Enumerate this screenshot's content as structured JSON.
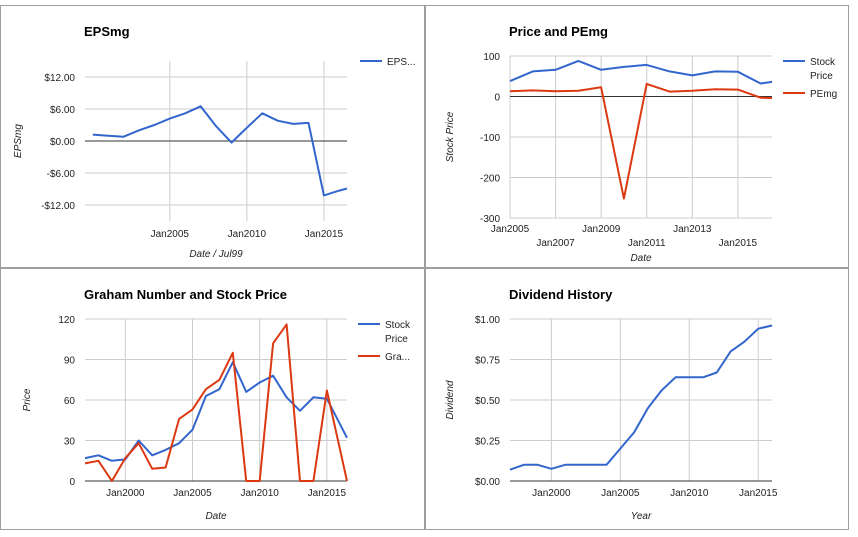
{
  "colors": {
    "blue": "#3366cc",
    "red": "#dc3912",
    "grid": "#cccccc"
  },
  "chart_data": [
    {
      "type": "line",
      "title": "EPSmg",
      "xlabel": "Date / Jul99",
      "ylabel": "EPSmg",
      "ylim": [
        -15,
        15
      ],
      "xlim": [
        "1999-07-01",
        "2016-07-01"
      ],
      "y_ticks": [
        {
          "label": "$12.00",
          "value": 12
        },
        {
          "label": "$6.00",
          "value": 6
        },
        {
          "label": "$0.00",
          "value": 0
        },
        {
          "label": "-$6.00",
          "value": -6
        },
        {
          "label": "-$12.00",
          "value": -12
        }
      ],
      "x_ticks": [
        {
          "label": "Jan2005",
          "value": "2005-01-01"
        },
        {
          "label": "Jan2010",
          "value": "2010-01-01"
        },
        {
          "label": "Jan2015",
          "value": "2015-01-01"
        }
      ],
      "legend_position": "right",
      "series": [
        {
          "name": "EPS...",
          "color": "#3366cc",
          "x": [
            "2000-01-01",
            "2001-01-01",
            "2002-01-01",
            "2003-01-01",
            "2004-01-01",
            "2005-01-01",
            "2006-01-01",
            "2007-01-01",
            "2008-01-01",
            "2009-01-01",
            "2010-01-01",
            "2011-01-01",
            "2012-01-01",
            "2013-01-01",
            "2014-01-01",
            "2015-01-01",
            "2016-01-01",
            "2016-07-01"
          ],
          "y": [
            1.2,
            1.0,
            0.8,
            2.0,
            3.0,
            4.2,
            5.2,
            6.5,
            2.8,
            -0.3,
            2.5,
            5.2,
            3.8,
            3.2,
            3.4,
            -10.2,
            -9.3,
            -8.9
          ]
        }
      ]
    },
    {
      "type": "line",
      "title": "Price and PEmg",
      "xlabel": "Date",
      "ylabel": "Stock Price",
      "ylim": [
        -300,
        100
      ],
      "xlim": [
        "2005-01-01",
        "2016-07-01"
      ],
      "y_ticks": [
        {
          "label": "100",
          "value": 100
        },
        {
          "label": "0",
          "value": 0
        },
        {
          "label": "-100",
          "value": -100
        },
        {
          "label": "-200",
          "value": -200
        },
        {
          "label": "-300",
          "value": -300
        }
      ],
      "x_ticks_top": [
        {
          "label": "Jan2005",
          "value": "2005-01-01"
        },
        {
          "label": "Jan2009",
          "value": "2009-01-01"
        },
        {
          "label": "Jan2013",
          "value": "2013-01-01"
        }
      ],
      "x_ticks_bottom": [
        {
          "label": "Jan2007",
          "value": "2007-01-01"
        },
        {
          "label": "Jan2011",
          "value": "2011-01-01"
        },
        {
          "label": "Jan2015",
          "value": "2015-01-01"
        }
      ],
      "legend_position": "right",
      "series": [
        {
          "name": "Stock Price",
          "color": "#3366cc",
          "x": [
            "2005-01-01",
            "2006-01-01",
            "2007-01-01",
            "2008-01-01",
            "2009-01-01",
            "2010-01-01",
            "2011-01-01",
            "2012-01-01",
            "2013-01-01",
            "2014-01-01",
            "2015-01-01",
            "2016-01-01",
            "2016-07-01"
          ],
          "y": [
            38,
            62,
            66,
            88,
            66,
            73,
            78,
            62,
            52,
            62,
            61,
            32,
            36
          ]
        },
        {
          "name": "PEmg",
          "color": "#dc3912",
          "x": [
            "2005-01-01",
            "2006-01-01",
            "2007-01-01",
            "2008-01-01",
            "2009-01-01",
            "2010-01-01",
            "2011-01-01",
            "2012-01-01",
            "2013-01-01",
            "2014-01-01",
            "2015-01-01",
            "2016-01-01",
            "2016-07-01"
          ],
          "y": [
            13,
            15,
            13,
            14,
            23,
            -252,
            31,
            12,
            14,
            18,
            17,
            -3,
            -4
          ]
        }
      ]
    },
    {
      "type": "line",
      "title": "Graham Number and Stock Price",
      "xlabel": "Date",
      "ylabel": "Price",
      "ylim": [
        0,
        120
      ],
      "xlim": [
        "1997-01-01",
        "2016-07-01"
      ],
      "y_ticks": [
        {
          "label": "120",
          "value": 120
        },
        {
          "label": "90",
          "value": 90
        },
        {
          "label": "60",
          "value": 60
        },
        {
          "label": "30",
          "value": 30
        },
        {
          "label": "0",
          "value": 0
        }
      ],
      "x_ticks": [
        {
          "label": "Jan2000",
          "value": "2000-01-01"
        },
        {
          "label": "Jan2005",
          "value": "2005-01-01"
        },
        {
          "label": "Jan2010",
          "value": "2010-01-01"
        },
        {
          "label": "Jan2015",
          "value": "2015-01-01"
        }
      ],
      "legend_position": "right",
      "series": [
        {
          "name": "Stock Price",
          "color": "#3366cc",
          "x": [
            "1997-01-01",
            "1998-01-01",
            "1999-01-01",
            "2000-01-01",
            "2001-01-01",
            "2002-01-01",
            "2003-01-01",
            "2004-01-01",
            "2005-01-01",
            "2006-01-01",
            "2007-01-01",
            "2008-01-01",
            "2009-01-01",
            "2010-01-01",
            "2011-01-01",
            "2012-01-01",
            "2013-01-01",
            "2014-01-01",
            "2015-01-01",
            "2016-07-01"
          ],
          "y": [
            17,
            19,
            15,
            16,
            30,
            19,
            23,
            28,
            38,
            63,
            68,
            88,
            66,
            73,
            78,
            62,
            52,
            62,
            61,
            32
          ]
        },
        {
          "name": "Gra...",
          "color": "#dc3912",
          "x": [
            "1997-01-01",
            "1998-01-01",
            "1999-01-01",
            "2000-01-01",
            "2001-01-01",
            "2002-01-01",
            "2003-01-01",
            "2004-01-01",
            "2005-01-01",
            "2006-01-01",
            "2007-01-01",
            "2008-01-01",
            "2009-01-01",
            "2010-01-01",
            "2011-01-01",
            "2012-01-01",
            "2013-01-01",
            "2014-01-01",
            "2015-01-01",
            "2016-07-01"
          ],
          "y": [
            13,
            15,
            0,
            17,
            28,
            9,
            10,
            46,
            53,
            68,
            75,
            95,
            0,
            0,
            102,
            116,
            0,
            0,
            67,
            0
          ]
        }
      ]
    },
    {
      "type": "line",
      "title": "Dividend History",
      "xlabel": "Year",
      "ylabel": "Dividend",
      "ylim": [
        0,
        1
      ],
      "xlim": [
        1997,
        2016
      ],
      "y_ticks": [
        {
          "label": "$1.00",
          "value": 1
        },
        {
          "label": "$0.75",
          "value": 0.75
        },
        {
          "label": "$0.50",
          "value": 0.5
        },
        {
          "label": "$0.25",
          "value": 0.25
        },
        {
          "label": "$0.00",
          "value": 0
        }
      ],
      "x_ticks": [
        {
          "label": "Jan2000",
          "value": 2000
        },
        {
          "label": "Jan2005",
          "value": 2005
        },
        {
          "label": "Jan2010",
          "value": 2010
        },
        {
          "label": "Jan2015",
          "value": 2015
        }
      ],
      "series": [
        {
          "name": "",
          "color": "#3366cc",
          "x": [
            1997,
            1998,
            1999,
            2000,
            2001,
            2002,
            2003,
            2004,
            2005,
            2006,
            2007,
            2008,
            2009,
            2010,
            2011,
            2012,
            2013,
            2014,
            2015,
            2016
          ],
          "y": [
            0.07,
            0.1,
            0.1,
            0.075,
            0.1,
            0.1,
            0.1,
            0.1,
            0.2,
            0.3,
            0.45,
            0.56,
            0.64,
            0.64,
            0.64,
            0.67,
            0.8,
            0.86,
            0.94,
            0.96
          ]
        }
      ]
    }
  ]
}
